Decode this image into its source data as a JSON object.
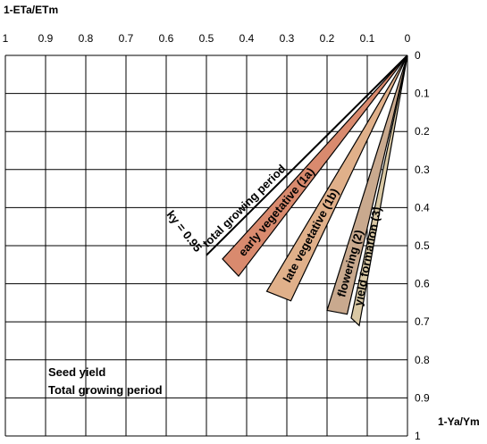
{
  "chart_data": {
    "type": "line",
    "title": "",
    "y_axis_title": "1-ETa/ETm",
    "x_axis_title": "1-Ya/Ym",
    "note_lines": [
      "Seed yield",
      "Total growing period"
    ],
    "top_ticks": [
      "1",
      "0.9",
      "0.8",
      "0.7",
      "0.6",
      "0.5",
      "0.4",
      "0.3",
      "0.2",
      "0.1",
      "0"
    ],
    "right_ticks": [
      "0",
      "0.1",
      "0.2",
      "0.3",
      "0.4",
      "0.5",
      "0.6",
      "0.7",
      "0.8",
      "0.9",
      "1"
    ],
    "xlim": [
      1,
      0
    ],
    "ylim": [
      0,
      1
    ],
    "grid": true,
    "total_line": {
      "label": "total growing period",
      "ky_label": "ky = 0.95",
      "start": [
        0,
        0
      ],
      "end": [
        0.5,
        0.525
      ]
    },
    "wedges": [
      {
        "label": "early vegetative (1a)",
        "color": "#d98a6e",
        "edge1_end": [
          0.46,
          0.535
        ],
        "edge2_end": [
          0.42,
          0.58
        ]
      },
      {
        "label": "late vegetative (1b)",
        "color": "#e0b08a",
        "edge1_end": [
          0.35,
          0.62
        ],
        "edge2_end": [
          0.29,
          0.645
        ]
      },
      {
        "label": "flowering (2)",
        "color": "#c9a98e",
        "edge1_end": [
          0.2,
          0.67
        ],
        "edge2_end": [
          0.15,
          0.68
        ]
      },
      {
        "label": "yield formation (3)",
        "color": "#d9c8a4",
        "edge1_end": [
          0.14,
          0.69
        ],
        "edge2_end": [
          0.12,
          0.71
        ]
      }
    ]
  }
}
